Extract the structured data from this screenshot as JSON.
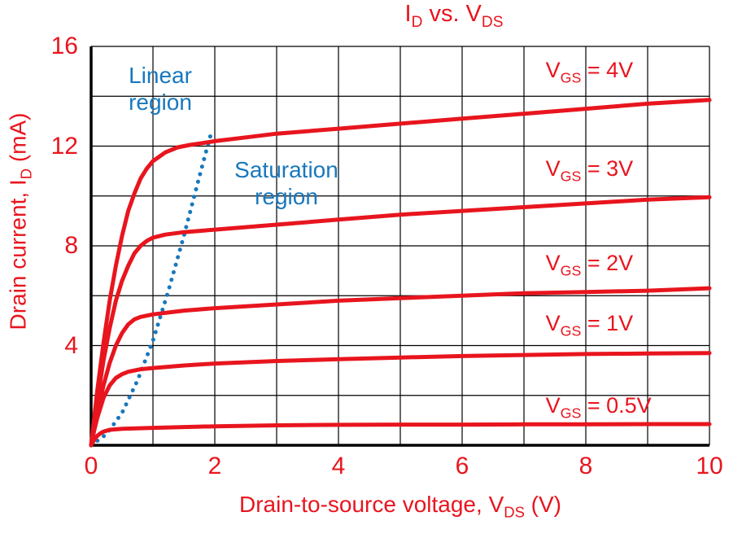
{
  "colors": {
    "curve_red": "#e8151e",
    "text_red": "#e8151e",
    "boundary_blue": "#1878bd",
    "grid": "#000000",
    "background": "#ffffff"
  },
  "title": {
    "part1": "I",
    "sub1": "D",
    "part2": " vs. V",
    "sub2": "DS"
  },
  "regions": {
    "linear_line1": "Linear",
    "linear_line2": "region",
    "saturation_line1": "Saturation",
    "saturation_line2": "region"
  },
  "axes": {
    "x_label_pre": "Drain-to-source voltage, V",
    "x_label_sub": "DS",
    "x_label_post": " (V)",
    "y_label_pre": "Drain current, I",
    "y_label_sub": "D",
    "y_label_post": " (mA)"
  },
  "chart_data": {
    "type": "line",
    "title": "ID vs. VDS",
    "xlabel": "Drain-to-source voltage, VDS (V)",
    "ylabel": "Drain current, ID (mA)",
    "xlim": [
      0,
      10
    ],
    "ylim": [
      0,
      16
    ],
    "x_ticks": [
      0,
      2,
      4,
      6,
      8,
      10
    ],
    "y_ticks": [
      0,
      4,
      8,
      12,
      16
    ],
    "x_grid_step": 1,
    "y_grid_step": 2,
    "grid": true,
    "legend_position": "labels-on-plot",
    "series": [
      {
        "name": "VGS = 4V",
        "label_prefix": "V",
        "label_sub": "GS",
        "label_value": " = 4V",
        "label_at": [
          7.35,
          15.05
        ],
        "points": [
          [
            0,
            0
          ],
          [
            0.1,
            2.2
          ],
          [
            0.2,
            4.1
          ],
          [
            0.3,
            5.8
          ],
          [
            0.4,
            7.2
          ],
          [
            0.5,
            8.4
          ],
          [
            0.6,
            9.4
          ],
          [
            0.7,
            10.1
          ],
          [
            0.8,
            10.7
          ],
          [
            0.9,
            11.1
          ],
          [
            1.0,
            11.4
          ],
          [
            1.2,
            11.75
          ],
          [
            1.4,
            11.95
          ],
          [
            1.6,
            12.05
          ],
          [
            1.8,
            12.12
          ],
          [
            2.0,
            12.2
          ],
          [
            2.5,
            12.35
          ],
          [
            3,
            12.5
          ],
          [
            4,
            12.7
          ],
          [
            5,
            12.9
          ],
          [
            6,
            13.1
          ],
          [
            7,
            13.3
          ],
          [
            8,
            13.5
          ],
          [
            9,
            13.7
          ],
          [
            10,
            13.85
          ]
        ]
      },
      {
        "name": "VGS = 3V",
        "label_prefix": "V",
        "label_sub": "GS",
        "label_value": " = 3V",
        "label_at": [
          7.35,
          11.1
        ],
        "points": [
          [
            0,
            0
          ],
          [
            0.1,
            1.8
          ],
          [
            0.2,
            3.4
          ],
          [
            0.3,
            4.7
          ],
          [
            0.4,
            5.8
          ],
          [
            0.5,
            6.6
          ],
          [
            0.6,
            7.2
          ],
          [
            0.7,
            7.7
          ],
          [
            0.8,
            8.0
          ],
          [
            0.9,
            8.2
          ],
          [
            1.0,
            8.33
          ],
          [
            1.2,
            8.45
          ],
          [
            1.5,
            8.55
          ],
          [
            2,
            8.65
          ],
          [
            3,
            8.85
          ],
          [
            4,
            9.05
          ],
          [
            5,
            9.25
          ],
          [
            6,
            9.4
          ],
          [
            7,
            9.55
          ],
          [
            8,
            9.7
          ],
          [
            9,
            9.85
          ],
          [
            10,
            9.95
          ]
        ]
      },
      {
        "name": "VGS = 2V",
        "label_prefix": "V",
        "label_sub": "GS",
        "label_value": " = 2V",
        "label_at": [
          7.35,
          7.3
        ],
        "points": [
          [
            0,
            0
          ],
          [
            0.1,
            1.3
          ],
          [
            0.2,
            2.4
          ],
          [
            0.3,
            3.3
          ],
          [
            0.4,
            4.0
          ],
          [
            0.5,
            4.5
          ],
          [
            0.6,
            4.85
          ],
          [
            0.7,
            5.05
          ],
          [
            0.8,
            5.15
          ],
          [
            1.0,
            5.25
          ],
          [
            1.5,
            5.4
          ],
          [
            2,
            5.5
          ],
          [
            3,
            5.65
          ],
          [
            4,
            5.8
          ],
          [
            5,
            5.9
          ],
          [
            6,
            6.0
          ],
          [
            7,
            6.1
          ],
          [
            8,
            6.15
          ],
          [
            9,
            6.2
          ],
          [
            10,
            6.3
          ]
        ]
      },
      {
        "name": "VGS = 1V",
        "label_prefix": "V",
        "label_sub": "GS",
        "label_value": " = 1V",
        "label_at": [
          7.35,
          4.9
        ],
        "points": [
          [
            0,
            0
          ],
          [
            0.05,
            0.6
          ],
          [
            0.1,
            1.1
          ],
          [
            0.2,
            1.9
          ],
          [
            0.3,
            2.4
          ],
          [
            0.4,
            2.7
          ],
          [
            0.5,
            2.85
          ],
          [
            0.6,
            2.95
          ],
          [
            0.8,
            3.05
          ],
          [
            1,
            3.1
          ],
          [
            1.5,
            3.2
          ],
          [
            2,
            3.28
          ],
          [
            3,
            3.38
          ],
          [
            4,
            3.45
          ],
          [
            5,
            3.52
          ],
          [
            6,
            3.58
          ],
          [
            7,
            3.62
          ],
          [
            8,
            3.66
          ],
          [
            9,
            3.68
          ],
          [
            10,
            3.7
          ]
        ]
      },
      {
        "name": "VGS = 0.5V",
        "label_prefix": "V",
        "label_sub": "GS",
        "label_value": " = 0.5V",
        "label_at": [
          7.35,
          1.6
        ],
        "points": [
          [
            0,
            0
          ],
          [
            0.05,
            0.22
          ],
          [
            0.1,
            0.38
          ],
          [
            0.15,
            0.48
          ],
          [
            0.2,
            0.55
          ],
          [
            0.3,
            0.62
          ],
          [
            0.5,
            0.66
          ],
          [
            1,
            0.7
          ],
          [
            2,
            0.76
          ],
          [
            3,
            0.8
          ],
          [
            4,
            0.82
          ],
          [
            5,
            0.83
          ],
          [
            6,
            0.83
          ],
          [
            7,
            0.84
          ],
          [
            8,
            0.84
          ],
          [
            9,
            0.85
          ],
          [
            10,
            0.85
          ]
        ]
      }
    ],
    "boundary": {
      "name": "linear-saturation boundary",
      "style": "dotted",
      "points": [
        [
          0,
          0
        ],
        [
          0.25,
          0.45
        ],
        [
          0.5,
          1.3
        ],
        [
          0.75,
          2.6
        ],
        [
          1.0,
          4.2
        ],
        [
          1.25,
          6.2
        ],
        [
          1.5,
          8.4
        ],
        [
          1.7,
          10.3
        ],
        [
          1.85,
          11.7
        ],
        [
          1.95,
          12.6
        ]
      ]
    }
  }
}
